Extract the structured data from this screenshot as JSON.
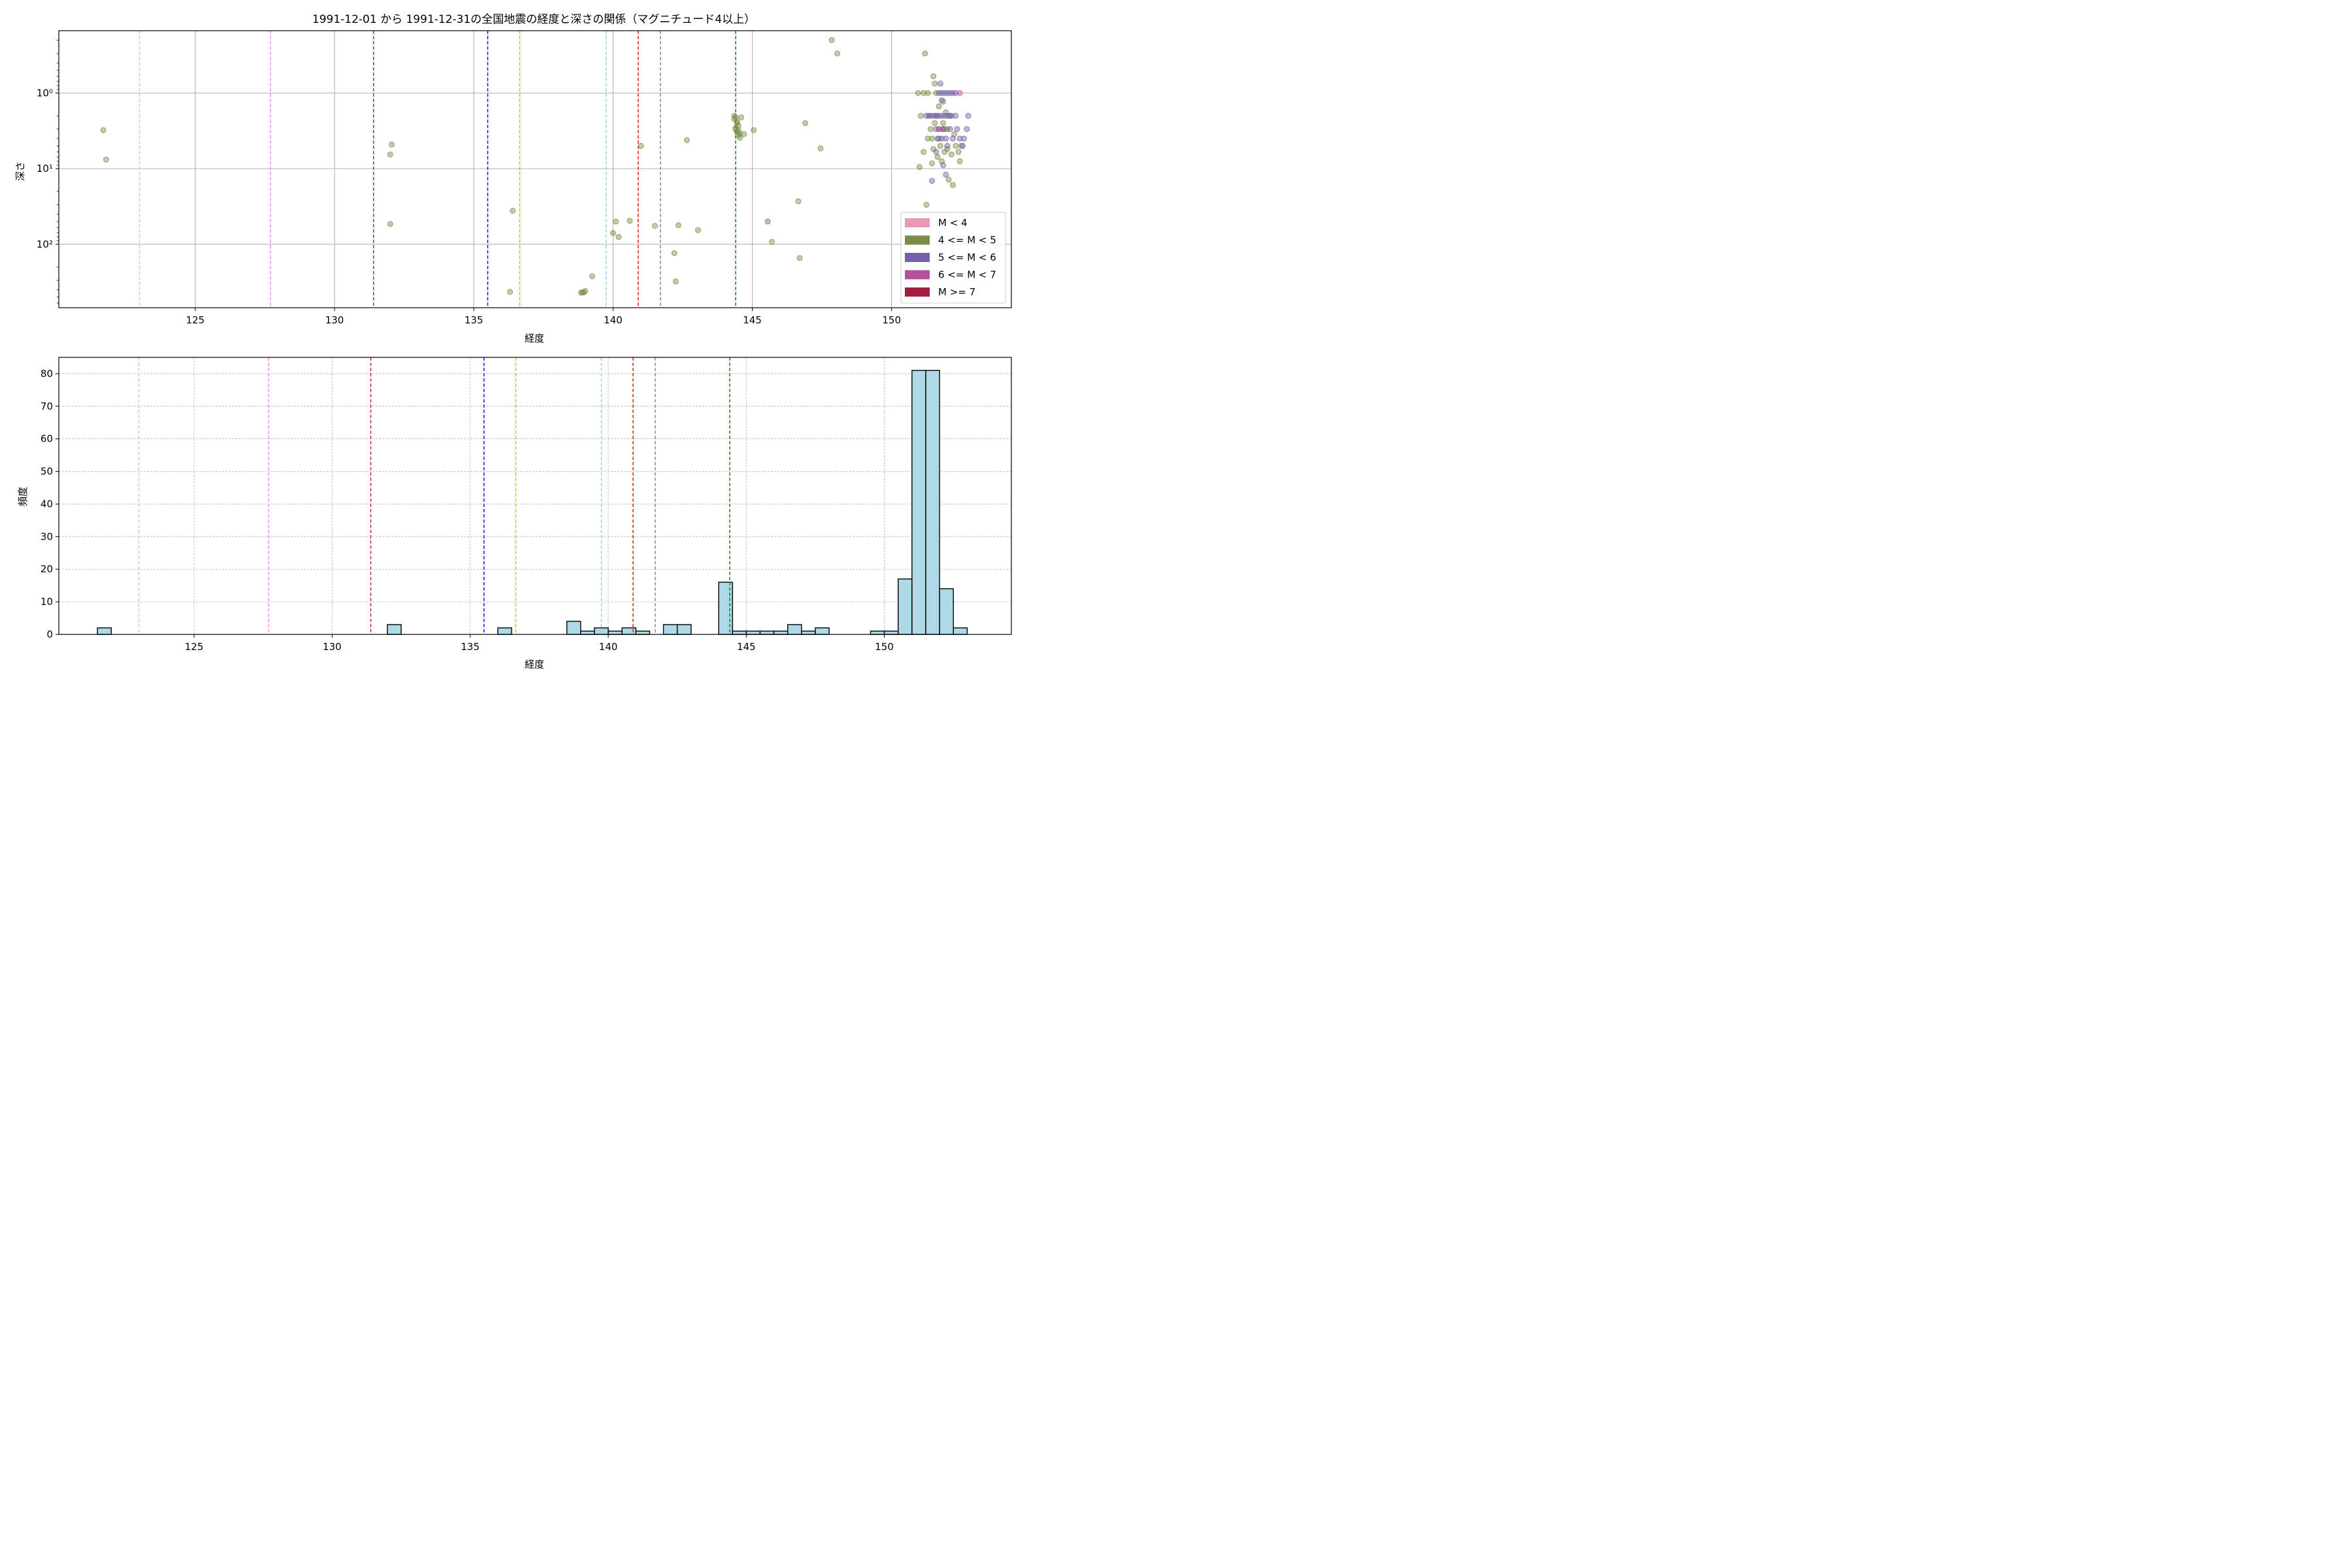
{
  "figure_title": "1991-12-01 から 1991-12-31の全国地震の経度と深さの関係（マグニチュード4以上）",
  "chart_data": [
    {
      "type": "scatter",
      "panel": "top",
      "xlabel": "経度",
      "ylabel": "深さ",
      "xlim": [
        120.1,
        154.3
      ],
      "ylim": [
        690,
        0.15
      ],
      "y_scale": "log",
      "y_inverted": true,
      "grid": true,
      "x_ticks": [
        125,
        130,
        135,
        140,
        145,
        150
      ],
      "y_ticks": [
        {
          "value": 1,
          "label": "10⁰"
        },
        {
          "value": 10,
          "label": "10¹"
        },
        {
          "value": 100,
          "label": "10²"
        }
      ],
      "legend_position": "bottom-right",
      "legend": [
        {
          "label": "M < 4",
          "color": "#e79ab4"
        },
        {
          "label": "4 <= M < 5",
          "color": "#7b8c45"
        },
        {
          "label": "5 <= M < 6",
          "color": "#7460aa"
        },
        {
          "label": "6 <= M < 7",
          "color": "#b5519b"
        },
        {
          "label": "M >= 7",
          "color": "#a21d3f"
        }
      ],
      "reference_lines": [
        {
          "x": 123.0,
          "color": "#ffb6c1"
        },
        {
          "x": 127.7,
          "color": "#ee82ee"
        },
        {
          "x": 131.4,
          "color": "#b22222"
        },
        {
          "x": 135.5,
          "color": "#0000ff"
        },
        {
          "x": 136.65,
          "color": "#ffa500"
        },
        {
          "x": 139.75,
          "color": "#87ceeb"
        },
        {
          "x": 140.9,
          "color": "#ff0000"
        },
        {
          "x": 141.7,
          "color": "#808080"
        },
        {
          "x": 144.4,
          "color": "#008000"
        }
      ],
      "series": [
        {
          "magnitude_class": "4 <= M < 5",
          "color": "#7b8c45",
          "points": [
            [
              121.7,
              3.1
            ],
            [
              121.8,
              7.6
            ],
            [
              132.0,
              6.5
            ],
            [
              132.05,
              4.8
            ],
            [
              132.0,
              54
            ],
            [
              136.3,
              425
            ],
            [
              136.4,
              36
            ],
            [
              138.85,
              435
            ],
            [
              138.9,
              435
            ],
            [
              138.95,
              432
            ],
            [
              139.0,
              415
            ],
            [
              139.25,
              265
            ],
            [
              140.0,
              71
            ],
            [
              140.1,
              50
            ],
            [
              140.2,
              80
            ],
            [
              140.6,
              49
            ],
            [
              141.0,
              5.0
            ],
            [
              141.5,
              57
            ],
            [
              142.2,
              131
            ],
            [
              142.25,
              310
            ],
            [
              142.35,
              56
            ],
            [
              142.65,
              4.2
            ],
            [
              143.05,
              65
            ],
            [
              144.35,
              2.0
            ],
            [
              144.4,
              2.1
            ],
            [
              144.45,
              2.4
            ],
            [
              144.5,
              2.7
            ],
            [
              144.4,
              3.0
            ],
            [
              144.45,
              3.3
            ],
            [
              144.5,
              3.6
            ],
            [
              144.55,
              3.9
            ],
            [
              144.35,
              2.2
            ],
            [
              144.6,
              2.1
            ],
            [
              144.4,
              2.9
            ],
            [
              144.5,
              3.1
            ],
            [
              144.45,
              2.5
            ],
            [
              144.55,
              3.4
            ],
            [
              144.7,
              3.5
            ],
            [
              145.05,
              3.1
            ],
            [
              145.7,
              93
            ],
            [
              146.65,
              27
            ],
            [
              146.7,
              152
            ],
            [
              146.9,
              2.5
            ],
            [
              147.45,
              5.4
            ],
            [
              147.85,
              0.2
            ],
            [
              148.05,
              0.3
            ],
            [
              150.95,
              1.0
            ],
            [
              151.05,
              2.0
            ],
            [
              151.15,
              1.0
            ],
            [
              151.2,
              0.3
            ],
            [
              151.25,
              30
            ],
            [
              151.3,
              1.0
            ],
            [
              151.35,
              2.0
            ],
            [
              151.4,
              3.0
            ],
            [
              151.45,
              4.0
            ],
            [
              151.5,
              0.6
            ],
            [
              151.5,
              5.5
            ],
            [
              151.55,
              0.75
            ],
            [
              151.6,
              1.0
            ],
            [
              151.6,
              2.0
            ],
            [
              151.65,
              7.0
            ],
            [
              151.7,
              4.0
            ],
            [
              151.75,
              5.0
            ],
            [
              151.8,
              8.0
            ],
            [
              151.85,
              1.3
            ],
            [
              151.9,
              3.0
            ],
            [
              151.9,
              6.0
            ],
            [
              151.95,
              1.8
            ],
            [
              152.0,
              5.5
            ],
            [
              152.05,
              14.0
            ],
            [
              152.1,
              2.0
            ],
            [
              152.15,
              6.5
            ],
            [
              152.2,
              16.5
            ],
            [
              152.25,
              3.5
            ],
            [
              152.3,
              5.0
            ],
            [
              152.4,
              6.0
            ],
            [
              152.45,
              8.0
            ],
            [
              152.5,
              5.0
            ],
            [
              151.0,
              9.5
            ],
            [
              151.15,
              6.0
            ],
            [
              151.3,
              4.0
            ],
            [
              151.45,
              8.5
            ],
            [
              151.55,
              2.5
            ],
            [
              151.7,
              1.5
            ],
            [
              151.85,
              2.5
            ],
            [
              152.0,
              3.0
            ]
          ]
        },
        {
          "magnitude_class": "5 <= M < 6",
          "color": "#7460aa",
          "points": [
            [
              145.55,
              50
            ],
            [
              151.25,
              2.0
            ],
            [
              151.35,
              2.0
            ],
            [
              151.45,
              2.0
            ],
            [
              151.55,
              2.0
            ],
            [
              151.65,
              2.0
            ],
            [
              151.75,
              2.0
            ],
            [
              151.85,
              2.0
            ],
            [
              151.95,
              2.0
            ],
            [
              152.05,
              2.0
            ],
            [
              152.15,
              2.0
            ],
            [
              152.3,
              2.0
            ],
            [
              152.75,
              2.0
            ],
            [
              151.6,
              3.0
            ],
            [
              151.7,
              3.0
            ],
            [
              151.85,
              3.0
            ],
            [
              152.1,
              3.0
            ],
            [
              152.35,
              3.0
            ],
            [
              152.7,
              3.0
            ],
            [
              151.65,
              4.0
            ],
            [
              151.8,
              4.0
            ],
            [
              151.95,
              4.0
            ],
            [
              152.2,
              4.0
            ],
            [
              152.45,
              4.0
            ],
            [
              152.6,
              4.0
            ],
            [
              151.7,
              1.0
            ],
            [
              151.8,
              1.0
            ],
            [
              151.9,
              1.0
            ],
            [
              152.0,
              1.0
            ],
            [
              152.1,
              1.0
            ],
            [
              152.2,
              1.0
            ],
            [
              152.3,
              1.0
            ],
            [
              151.75,
              0.75
            ],
            [
              151.8,
              1.25
            ],
            [
              151.6,
              6.0
            ],
            [
              152.0,
              5.0
            ],
            [
              152.55,
              5.0
            ],
            [
              151.85,
              9.0
            ],
            [
              151.95,
              12.0
            ],
            [
              151.45,
              14.5
            ]
          ]
        },
        {
          "magnitude_class": "6 <= M < 7",
          "color": "#b5519b",
          "points": [
            [
              152.45,
              1.0
            ],
            [
              151.7,
              3.0
            ],
            [
              151.85,
              3.0
            ]
          ]
        }
      ]
    },
    {
      "type": "bar",
      "panel": "bottom",
      "xlabel": "経度",
      "ylabel": "頻度",
      "xlim": [
        120.1,
        154.6
      ],
      "ylim": [
        0,
        85
      ],
      "grid": true,
      "x_ticks": [
        125,
        130,
        135,
        140,
        145,
        150
      ],
      "y_ticks": [
        0,
        10,
        20,
        30,
        40,
        50,
        60,
        70,
        80
      ],
      "bar_color": "#add8e6",
      "bin_width": 0.5,
      "bins": [
        {
          "x": 121.5,
          "count": 2
        },
        {
          "x": 132.0,
          "count": 3
        },
        {
          "x": 136.0,
          "count": 2
        },
        {
          "x": 138.5,
          "count": 4
        },
        {
          "x": 139.0,
          "count": 1
        },
        {
          "x": 139.5,
          "count": 2
        },
        {
          "x": 140.0,
          "count": 1
        },
        {
          "x": 140.5,
          "count": 2
        },
        {
          "x": 141.0,
          "count": 1
        },
        {
          "x": 142.0,
          "count": 3
        },
        {
          "x": 142.5,
          "count": 3
        },
        {
          "x": 144.0,
          "count": 16
        },
        {
          "x": 144.5,
          "count": 1
        },
        {
          "x": 145.0,
          "count": 1
        },
        {
          "x": 145.5,
          "count": 1
        },
        {
          "x": 146.0,
          "count": 1
        },
        {
          "x": 146.5,
          "count": 3
        },
        {
          "x": 147.0,
          "count": 1
        },
        {
          "x": 147.5,
          "count": 2
        },
        {
          "x": 149.5,
          "count": 1
        },
        {
          "x": 150.0,
          "count": 1
        },
        {
          "x": 150.5,
          "count": 17
        },
        {
          "x": 151.0,
          "count": 81
        },
        {
          "x": 151.5,
          "count": 81
        },
        {
          "x": 152.0,
          "count": 14
        },
        {
          "x": 152.5,
          "count": 2
        }
      ],
      "reference_lines": [
        {
          "x": 123.0,
          "color": "#ffb6c1"
        },
        {
          "x": 127.7,
          "color": "#ee82ee"
        },
        {
          "x": 131.4,
          "color": "#b22222"
        },
        {
          "x": 135.5,
          "color": "#0000ff"
        },
        {
          "x": 136.65,
          "color": "#ffa500"
        },
        {
          "x": 139.75,
          "color": "#87ceeb"
        },
        {
          "x": 140.9,
          "color": "#ff0000"
        },
        {
          "x": 141.7,
          "color": "#808080"
        },
        {
          "x": 144.4,
          "color": "#008000"
        }
      ]
    }
  ]
}
